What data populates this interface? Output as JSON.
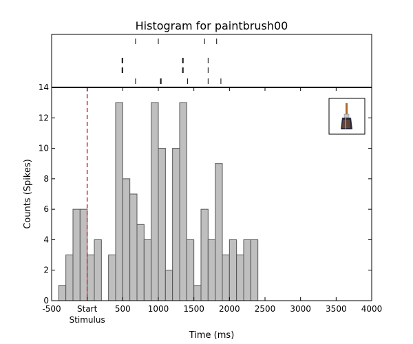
{
  "chart_data": {
    "type": "histogram",
    "title": "Histogram for paintbrush00",
    "xlabel": "Time (ms)",
    "ylabel": "Counts (Spikes)",
    "xlim": [
      -500,
      4000
    ],
    "ylim": [
      0,
      14
    ],
    "x_ticks": [
      {
        "value": -500,
        "label": "-500"
      },
      {
        "value": 0,
        "label": "Start"
      },
      {
        "value": 500,
        "label": "500"
      },
      {
        "value": 1000,
        "label": "1000"
      },
      {
        "value": 1500,
        "label": "1500"
      },
      {
        "value": 2000,
        "label": "2000"
      },
      {
        "value": 2500,
        "label": "2500"
      },
      {
        "value": 3000,
        "label": "3000"
      },
      {
        "value": 3500,
        "label": "3500"
      },
      {
        "value": 4000,
        "label": "4000"
      }
    ],
    "x_tick_sublabel": "Stimulus",
    "y_ticks": [
      0,
      2,
      4,
      6,
      8,
      10,
      12,
      14
    ],
    "bin_width": 100,
    "bins_start": [
      -400,
      -300,
      -200,
      -100,
      0,
      100,
      200,
      300,
      400,
      500,
      600,
      700,
      800,
      900,
      1000,
      1100,
      1200,
      1300,
      1400,
      1500,
      1600,
      1700,
      1800,
      1900,
      2000,
      2100,
      2200,
      2300
    ],
    "counts": [
      1,
      3,
      6,
      6,
      3,
      4,
      0,
      3,
      13,
      8,
      7,
      5,
      4,
      13,
      10,
      2,
      10,
      13,
      4,
      1,
      6,
      4,
      9,
      3,
      4,
      3,
      4,
      4
    ],
    "stimulus_onset": 0,
    "raster_trials": [
      [
        680,
        1000,
        1650,
        1820
      ],
      [
        490,
        500,
        1340,
        1350,
        1700
      ],
      [
        490,
        500,
        1340,
        1350,
        1700
      ],
      [
        680,
        1030,
        1040,
        1410,
        1700,
        1880
      ]
    ],
    "colors": {
      "bars": "#bfbfbf",
      "bar_edge": "#555555",
      "stimulus_line": "#e0202a"
    },
    "grid": false,
    "inset_image": "paintbrush"
  }
}
